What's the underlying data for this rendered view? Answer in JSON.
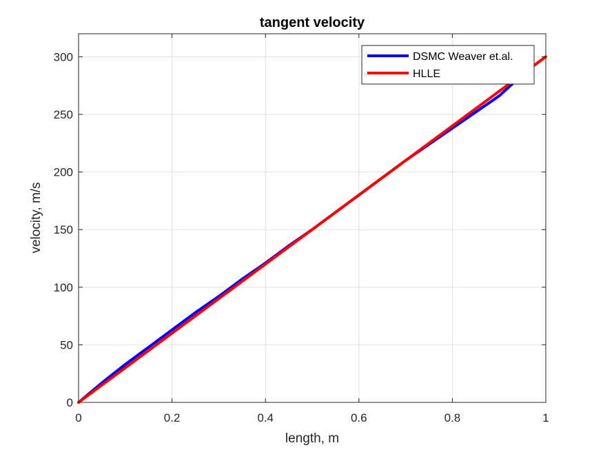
{
  "chart_data": {
    "type": "line",
    "title": "tangent velocity",
    "xlabel": "length, m",
    "ylabel": "velocity, m/s",
    "xlim": [
      0,
      1
    ],
    "ylim": [
      0,
      320
    ],
    "xticks": [
      0,
      0.2,
      0.4,
      0.6,
      0.8,
      1
    ],
    "xtick_labels": [
      "0",
      "0.2",
      "0.4",
      "0.6",
      "0.8",
      "1"
    ],
    "yticks": [
      0,
      50,
      100,
      150,
      200,
      250,
      300
    ],
    "ytick_labels": [
      "0",
      "50",
      "100",
      "150",
      "200",
      "250",
      "300"
    ],
    "grid": true,
    "legend_position": "top-right",
    "series": [
      {
        "name": "DSMC Weaver et.al.",
        "color": "#0000ff",
        "x": [
          0,
          0.05,
          0.1,
          0.15,
          0.2,
          0.25,
          0.3,
          0.35,
          0.4,
          0.45,
          0.5,
          0.55,
          0.6,
          0.65,
          0.7,
          0.75,
          0.8,
          0.85,
          0.9,
          0.93
        ],
        "y": [
          0,
          17,
          33,
          48,
          63,
          78,
          92,
          107,
          121,
          136,
          150,
          165,
          180,
          195,
          210,
          224,
          238,
          252,
          266,
          277
        ]
      },
      {
        "name": "HLLE",
        "color": "#ff0000",
        "x": [
          0,
          1
        ],
        "y": [
          0,
          300
        ]
      }
    ]
  }
}
